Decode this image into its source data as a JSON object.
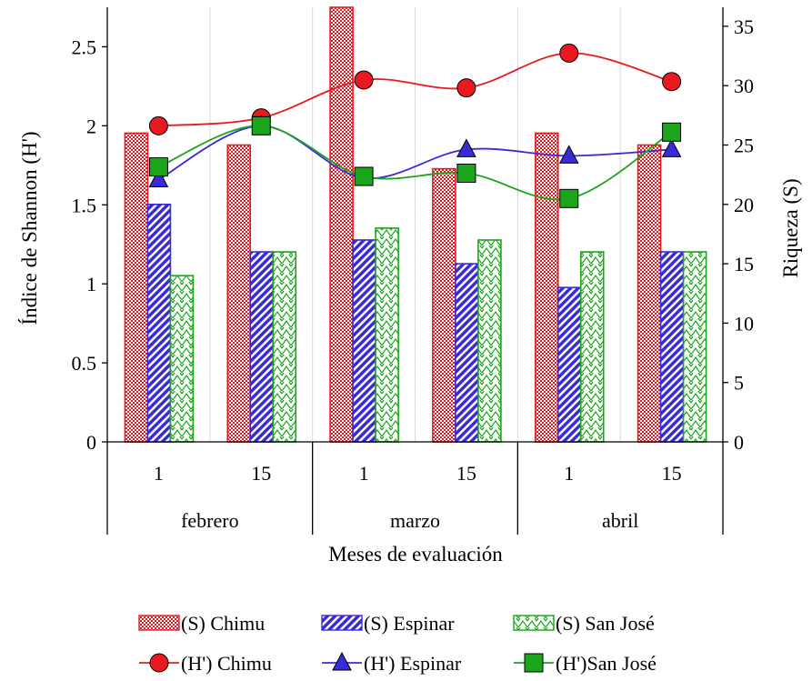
{
  "chart_data": {
    "type": "bar",
    "xlabel": "Meses de evaluación",
    "ylabel_left": "Índice de Shannon (H')",
    "ylabel_right": "Riqueza (S)",
    "groups": [
      {
        "month": "febrero",
        "days": [
          "1",
          "15"
        ]
      },
      {
        "month": "marzo",
        "days": [
          "1",
          "15"
        ]
      },
      {
        "month": "abril",
        "days": [
          "1",
          "15"
        ]
      }
    ],
    "categories": [
      "febrero 1",
      "febrero 15",
      "marzo 1",
      "marzo 15",
      "abril 1",
      "abril 15"
    ],
    "left_axis": {
      "min": 0,
      "max": 2.75,
      "ticks": [
        "0",
        "0.5",
        "1",
        "1.5",
        "2",
        "2.5"
      ],
      "tick_values": [
        0,
        0.5,
        1,
        1.5,
        2,
        2.5
      ]
    },
    "right_axis": {
      "min": 0,
      "max": 36.6,
      "ticks": [
        "0",
        "5",
        "10",
        "15",
        "20",
        "25",
        "30",
        "35"
      ],
      "tick_values": [
        0,
        5,
        10,
        15,
        20,
        25,
        30,
        35
      ]
    },
    "vertical_grid": true,
    "bar_series": [
      {
        "name": "(S) Chimu",
        "axis": "right",
        "color": "#e8191f",
        "pattern": "dots",
        "values": [
          26,
          25,
          37,
          23,
          26,
          25
        ]
      },
      {
        "name": "(S) Espinar",
        "axis": "right",
        "color": "#3a2bd9",
        "pattern": "diagonal",
        "values": [
          20,
          16,
          17,
          15,
          13,
          16
        ]
      },
      {
        "name": "(S) San José",
        "axis": "right",
        "color": "#1aa51a",
        "pattern": "zigzag",
        "values": [
          14,
          16,
          18,
          17,
          16,
          16
        ]
      }
    ],
    "line_series": [
      {
        "name": "(H') Chimu",
        "axis": "left",
        "color": "#e8191f",
        "marker": "circle",
        "values": [
          2.0,
          2.05,
          2.29,
          2.24,
          2.46,
          2.28
        ]
      },
      {
        "name": "(H') Espinar",
        "axis": "left",
        "color": "#3a2bd9",
        "marker": "triangle",
        "values": [
          1.66,
          2.0,
          1.67,
          1.85,
          1.81,
          1.85
        ]
      },
      {
        "name": "(H')San José",
        "axis": "left",
        "color": "#1aa51a",
        "marker": "square",
        "values": [
          1.74,
          2.0,
          1.68,
          1.7,
          1.54,
          1.96
        ]
      }
    ],
    "legend_position": "bottom"
  }
}
